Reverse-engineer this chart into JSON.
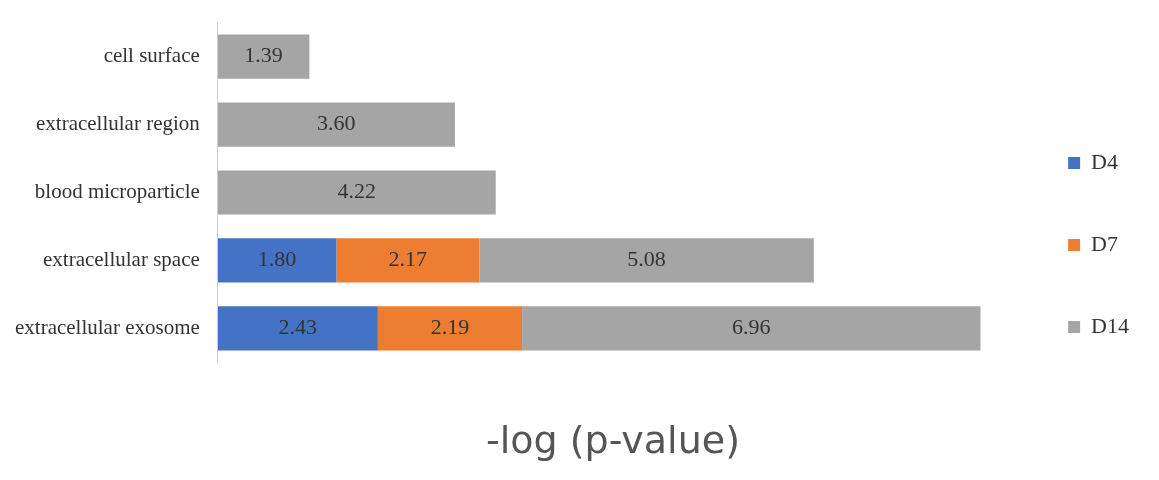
{
  "chart_data": {
    "type": "bar",
    "orientation": "horizontal",
    "stacked": true,
    "xlabel": "-log (p-value)",
    "categories": [
      "cell surface",
      "extracellular region",
      "blood microparticle",
      "extracellular space",
      "extracellular exosome"
    ],
    "series": [
      {
        "name": "D4",
        "color": "#4472c4",
        "values": [
          null,
          null,
          null,
          1.8,
          2.43
        ],
        "value_labels": [
          null,
          null,
          null,
          "1.80",
          "2.43"
        ]
      },
      {
        "name": "D7",
        "color": "#ed7d31",
        "values": [
          null,
          null,
          null,
          2.17,
          2.19
        ],
        "value_labels": [
          null,
          null,
          null,
          "2.17",
          "2.19"
        ]
      },
      {
        "name": "D14",
        "color": "#a5a5a5",
        "values": [
          1.39,
          3.6,
          4.22,
          5.08,
          6.96
        ],
        "value_labels": [
          "1.39",
          "3.60",
          "4.22",
          "5.08",
          "6.96"
        ]
      }
    ],
    "legend": "right",
    "grid": false
  }
}
